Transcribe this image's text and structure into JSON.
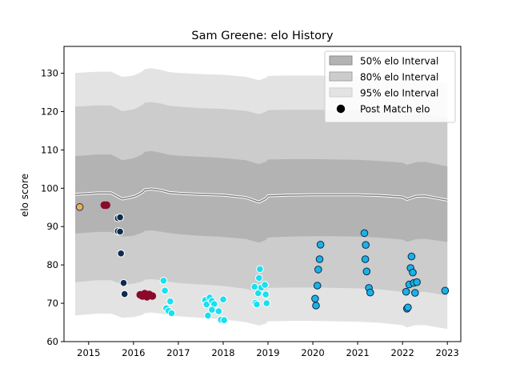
{
  "chart_data": {
    "type": "scatter",
    "title": "Sam Greene: elo History",
    "xlabel": "",
    "ylabel": "elo score",
    "xlim": [
      2014.45,
      2023.3
    ],
    "ylim": [
      60,
      137
    ],
    "x_ticks": [
      2015,
      2016,
      2017,
      2018,
      2019,
      2020,
      2021,
      2022,
      2023
    ],
    "y_ticks": [
      60,
      70,
      80,
      90,
      100,
      110,
      120,
      130
    ],
    "grid": false,
    "legend": {
      "placement": "top-right",
      "entries": [
        {
          "label": "50% elo Interval",
          "color": "#b3b3b3"
        },
        {
          "label": "80% elo Interval",
          "color": "#cccccc"
        },
        {
          "label": "95% elo Interval",
          "color": "#e3e3e3"
        },
        {
          "label": "Post Match elo",
          "color": "#000000"
        }
      ]
    },
    "bands": {
      "x": [
        2014.7,
        2015.2,
        2015.5,
        2015.7,
        2015.75,
        2016.0,
        2016.1,
        2016.2,
        2016.25,
        2016.4,
        2016.6,
        2016.8,
        2017.0,
        2017.5,
        2018.0,
        2018.5,
        2018.8,
        2018.95,
        2019.0,
        2019.5,
        2020.0,
        2020.5,
        2021.0,
        2021.5,
        2022.0,
        2022.1,
        2022.3,
        2022.5,
        2023.0
      ],
      "median": [
        98.4,
        98.8,
        98.8,
        97.5,
        97.2,
        97.8,
        98.3,
        99.0,
        99.6,
        99.8,
        99.5,
        98.9,
        98.7,
        98.4,
        98.2,
        97.6,
        96.4,
        97.3,
        98.0,
        98.2,
        98.3,
        98.3,
        98.3,
        98.1,
        97.7,
        97.1,
        97.9,
        98.0,
        96.9
      ],
      "p50_low": [
        88.2,
        88.6,
        88.6,
        87.6,
        87.4,
        87.6,
        88.0,
        88.4,
        88.9,
        89.0,
        88.7,
        88.3,
        88.0,
        87.6,
        87.3,
        86.8,
        85.8,
        86.5,
        87.2,
        87.4,
        87.5,
        87.5,
        87.4,
        87.1,
        86.6,
        86.0,
        86.7,
        86.8,
        86.0
      ],
      "p50_high": [
        108.4,
        108.8,
        108.8,
        107.6,
        107.3,
        107.8,
        108.3,
        108.9,
        109.5,
        109.7,
        109.3,
        108.7,
        108.5,
        108.2,
        107.9,
        107.3,
        106.3,
        106.9,
        107.5,
        107.6,
        107.6,
        107.5,
        107.4,
        107.1,
        106.7,
        106.1,
        106.8,
        106.9,
        105.7
      ],
      "p80_low": [
        75.5,
        76.0,
        76.0,
        75.1,
        74.9,
        75.1,
        75.4,
        75.7,
        76.1,
        76.3,
        76.0,
        75.6,
        75.3,
        74.9,
        74.5,
        73.8,
        72.8,
        73.4,
        74.0,
        74.1,
        74.1,
        74.0,
        73.9,
        73.6,
        73.0,
        72.4,
        73.0,
        73.0,
        72.0
      ],
      "p80_high": [
        121.3,
        121.6,
        121.6,
        120.4,
        120.1,
        120.6,
        121.1,
        121.7,
        122.3,
        122.5,
        122.1,
        121.5,
        121.3,
        120.9,
        120.7,
        120.2,
        119.3,
        119.9,
        120.4,
        120.5,
        120.5,
        120.4,
        120.3,
        120.0,
        119.6,
        119.0,
        119.6,
        119.7,
        118.3
      ],
      "p95_low": [
        66.8,
        67.3,
        67.3,
        66.4,
        66.2,
        66.4,
        66.7,
        67.0,
        67.4,
        67.6,
        67.3,
        66.9,
        66.6,
        66.2,
        65.8,
        65.1,
        64.2,
        64.7,
        65.3,
        65.4,
        65.4,
        65.3,
        65.2,
        64.9,
        64.3,
        63.7,
        64.3,
        64.3,
        63.3
      ],
      "p95_high": [
        130.1,
        130.4,
        130.4,
        129.3,
        129.0,
        129.4,
        129.9,
        130.5,
        131.1,
        131.3,
        130.9,
        130.3,
        130.1,
        129.8,
        129.6,
        129.1,
        128.2,
        128.8,
        129.3,
        129.4,
        129.4,
        129.3,
        129.2,
        128.9,
        128.5,
        127.9,
        128.5,
        128.6,
        127.2
      ]
    },
    "points": [
      {
        "x": 2014.8,
        "y": 95.1,
        "color": "#f2b233",
        "edge": "#2a2a8c"
      },
      {
        "x": 2015.35,
        "y": 95.6,
        "color": "#8b0a2a",
        "edge": "#8b0a2a"
      },
      {
        "x": 2015.4,
        "y": 95.6,
        "color": "#8b0a2a",
        "edge": "#8b0a2a"
      },
      {
        "x": 2015.65,
        "y": 92.2,
        "color": "#0d2b4d",
        "edge": "#ffffff"
      },
      {
        "x": 2015.7,
        "y": 92.4,
        "color": "#0d2b4d",
        "edge": "#ffffff"
      },
      {
        "x": 2015.65,
        "y": 88.8,
        "color": "#0d2b4d",
        "edge": "#ffffff"
      },
      {
        "x": 2015.7,
        "y": 88.7,
        "color": "#0d2b4d",
        "edge": "#ffffff"
      },
      {
        "x": 2015.72,
        "y": 83.0,
        "color": "#0d2b4d",
        "edge": "#ffffff"
      },
      {
        "x": 2015.78,
        "y": 75.3,
        "color": "#0d2b4d",
        "edge": "#ffffff"
      },
      {
        "x": 2015.8,
        "y": 72.4,
        "color": "#0d2b4d",
        "edge": "#ffffff"
      },
      {
        "x": 2016.15,
        "y": 72.2,
        "color": "#8b0a2a",
        "edge": "#8b0a2a"
      },
      {
        "x": 2016.2,
        "y": 71.9,
        "color": "#8b0a2a",
        "edge": "#8b0a2a"
      },
      {
        "x": 2016.25,
        "y": 72.5,
        "color": "#8b0a2a",
        "edge": "#8b0a2a"
      },
      {
        "x": 2016.3,
        "y": 71.7,
        "color": "#8b0a2a",
        "edge": "#8b0a2a"
      },
      {
        "x": 2016.35,
        "y": 72.3,
        "color": "#8b0a2a",
        "edge": "#8b0a2a"
      },
      {
        "x": 2016.42,
        "y": 71.9,
        "color": "#8b0a2a",
        "edge": "#8b0a2a"
      },
      {
        "x": 2016.67,
        "y": 75.9,
        "color": "#17e0f0",
        "edge": "#ffffff"
      },
      {
        "x": 2016.7,
        "y": 73.3,
        "color": "#17e0f0",
        "edge": "#ffffff"
      },
      {
        "x": 2016.73,
        "y": 68.7,
        "color": "#17e0f0",
        "edge": "#ffffff"
      },
      {
        "x": 2016.78,
        "y": 68.0,
        "color": "#17e0f0",
        "edge": "#ffffff"
      },
      {
        "x": 2016.82,
        "y": 70.5,
        "color": "#17e0f0",
        "edge": "#ffffff"
      },
      {
        "x": 2016.85,
        "y": 67.4,
        "color": "#17e0f0",
        "edge": "#ffffff"
      },
      {
        "x": 2017.6,
        "y": 70.8,
        "color": "#17e0f0",
        "edge": "#ffffff"
      },
      {
        "x": 2017.63,
        "y": 69.7,
        "color": "#17e0f0",
        "edge": "#ffffff"
      },
      {
        "x": 2017.66,
        "y": 66.8,
        "color": "#17e0f0",
        "edge": "#ffffff"
      },
      {
        "x": 2017.7,
        "y": 71.5,
        "color": "#17e0f0",
        "edge": "#ffffff"
      },
      {
        "x": 2017.75,
        "y": 70.6,
        "color": "#17e0f0",
        "edge": "#ffffff"
      },
      {
        "x": 2017.8,
        "y": 69.8,
        "color": "#17e0f0",
        "edge": "#ffffff"
      },
      {
        "x": 2017.75,
        "y": 68.3,
        "color": "#17e0f0",
        "edge": "#ffffff"
      },
      {
        "x": 2017.9,
        "y": 67.9,
        "color": "#17e0f0",
        "edge": "#ffffff"
      },
      {
        "x": 2017.95,
        "y": 65.7,
        "color": "#17e0f0",
        "edge": "#ffffff"
      },
      {
        "x": 2018.0,
        "y": 71.0,
        "color": "#17e0f0",
        "edge": "#ffffff"
      },
      {
        "x": 2018.02,
        "y": 65.6,
        "color": "#17e0f0",
        "edge": "#ffffff"
      },
      {
        "x": 2018.7,
        "y": 74.3,
        "color": "#17e0f0",
        "edge": "#ffffff"
      },
      {
        "x": 2018.72,
        "y": 70.1,
        "color": "#17e0f0",
        "edge": "#ffffff"
      },
      {
        "x": 2018.75,
        "y": 69.7,
        "color": "#17e0f0",
        "edge": "#ffffff"
      },
      {
        "x": 2018.78,
        "y": 72.6,
        "color": "#17e0f0",
        "edge": "#ffffff"
      },
      {
        "x": 2018.8,
        "y": 76.6,
        "color": "#17e0f0",
        "edge": "#ffffff"
      },
      {
        "x": 2018.82,
        "y": 78.9,
        "color": "#17e0f0",
        "edge": "#ffffff"
      },
      {
        "x": 2018.85,
        "y": 74.1,
        "color": "#17e0f0",
        "edge": "#ffffff"
      },
      {
        "x": 2018.93,
        "y": 74.8,
        "color": "#17e0f0",
        "edge": "#ffffff"
      },
      {
        "x": 2018.95,
        "y": 72.3,
        "color": "#17e0f0",
        "edge": "#ffffff"
      },
      {
        "x": 2018.97,
        "y": 70.0,
        "color": "#17e0f0",
        "edge": "#ffffff"
      },
      {
        "x": 2020.05,
        "y": 71.2,
        "color": "#1ab2e6",
        "edge": "#0d2b4d"
      },
      {
        "x": 2020.07,
        "y": 69.4,
        "color": "#1ab2e6",
        "edge": "#0d2b4d"
      },
      {
        "x": 2020.1,
        "y": 74.6,
        "color": "#1ab2e6",
        "edge": "#0d2b4d"
      },
      {
        "x": 2020.12,
        "y": 78.8,
        "color": "#1ab2e6",
        "edge": "#0d2b4d"
      },
      {
        "x": 2020.15,
        "y": 81.5,
        "color": "#1ab2e6",
        "edge": "#0d2b4d"
      },
      {
        "x": 2020.17,
        "y": 85.3,
        "color": "#1ab2e6",
        "edge": "#0d2b4d"
      },
      {
        "x": 2021.15,
        "y": 88.3,
        "color": "#1ab2e6",
        "edge": "#0d2b4d"
      },
      {
        "x": 2021.18,
        "y": 85.2,
        "color": "#1ab2e6",
        "edge": "#0d2b4d"
      },
      {
        "x": 2021.17,
        "y": 81.5,
        "color": "#1ab2e6",
        "edge": "#0d2b4d"
      },
      {
        "x": 2021.2,
        "y": 78.3,
        "color": "#1ab2e6",
        "edge": "#0d2b4d"
      },
      {
        "x": 2021.25,
        "y": 74.0,
        "color": "#1ab2e6",
        "edge": "#0d2b4d"
      },
      {
        "x": 2021.28,
        "y": 72.8,
        "color": "#1ab2e6",
        "edge": "#0d2b4d"
      },
      {
        "x": 2022.08,
        "y": 73.0,
        "color": "#1ab2e6",
        "edge": "#0d2b4d"
      },
      {
        "x": 2022.1,
        "y": 68.6,
        "color": "#1ab2e6",
        "edge": "#0d2b4d"
      },
      {
        "x": 2022.12,
        "y": 68.9,
        "color": "#1ab2e6",
        "edge": "#0d2b4d"
      },
      {
        "x": 2022.15,
        "y": 74.9,
        "color": "#1ab2e6",
        "edge": "#0d2b4d"
      },
      {
        "x": 2022.18,
        "y": 79.2,
        "color": "#1ab2e6",
        "edge": "#0d2b4d"
      },
      {
        "x": 2022.2,
        "y": 82.2,
        "color": "#1ab2e6",
        "edge": "#0d2b4d"
      },
      {
        "x": 2022.23,
        "y": 78.0,
        "color": "#1ab2e6",
        "edge": "#0d2b4d"
      },
      {
        "x": 2022.25,
        "y": 75.3,
        "color": "#1ab2e6",
        "edge": "#0d2b4d"
      },
      {
        "x": 2022.28,
        "y": 72.7,
        "color": "#1ab2e6",
        "edge": "#0d2b4d"
      },
      {
        "x": 2022.32,
        "y": 75.5,
        "color": "#1ab2e6",
        "edge": "#0d2b4d"
      },
      {
        "x": 2022.95,
        "y": 73.3,
        "color": "#1ab2e6",
        "edge": "#0d2b4d"
      }
    ]
  }
}
